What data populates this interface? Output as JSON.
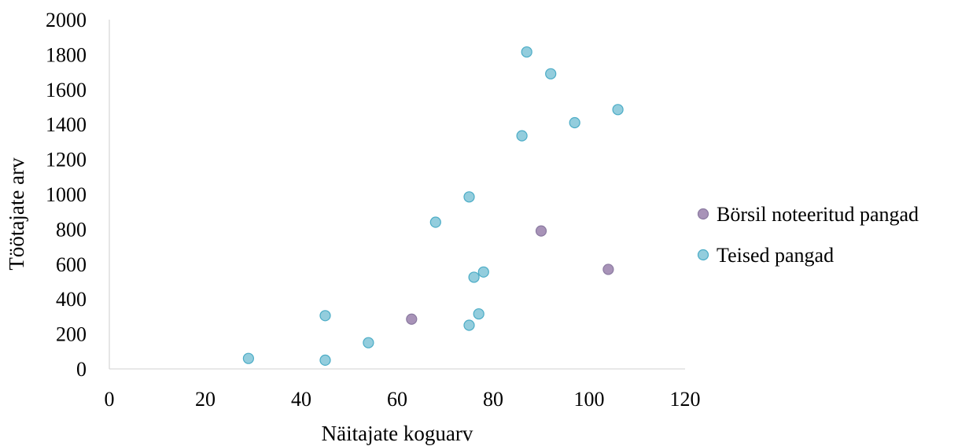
{
  "chart_data": {
    "type": "scatter",
    "title": "",
    "xlabel": "Näitajate koguarv",
    "ylabel": "Töötajate arv",
    "xlim": [
      0,
      120
    ],
    "ylim": [
      0,
      2000
    ],
    "x_ticks": [
      "0",
      "20",
      "40",
      "60",
      "80",
      "100",
      "120"
    ],
    "y_ticks": [
      "0",
      "200",
      "400",
      "600",
      "800",
      "1000",
      "1200",
      "1400",
      "1600",
      "1800",
      "2000"
    ],
    "grid": false,
    "legend_position": "right",
    "series": [
      {
        "name": "Börsil noteeritud pangad",
        "color": "#a893b8",
        "stroke": "#8a7aa0",
        "points": [
          {
            "x": 63,
            "y": 285
          },
          {
            "x": 90,
            "y": 790
          },
          {
            "x": 104,
            "y": 570
          }
        ]
      },
      {
        "name": "Teised pangad",
        "color": "#93cddd",
        "stroke": "#4bacc6",
        "points": [
          {
            "x": 29,
            "y": 60
          },
          {
            "x": 45,
            "y": 50
          },
          {
            "x": 45,
            "y": 305
          },
          {
            "x": 54,
            "y": 150
          },
          {
            "x": 68,
            "y": 840
          },
          {
            "x": 75,
            "y": 985
          },
          {
            "x": 75,
            "y": 250
          },
          {
            "x": 76,
            "y": 525
          },
          {
            "x": 77,
            "y": 315
          },
          {
            "x": 78,
            "y": 555
          },
          {
            "x": 86,
            "y": 1335
          },
          {
            "x": 87,
            "y": 1815
          },
          {
            "x": 92,
            "y": 1690
          },
          {
            "x": 97,
            "y": 1410
          },
          {
            "x": 106,
            "y": 1485
          }
        ]
      }
    ]
  }
}
